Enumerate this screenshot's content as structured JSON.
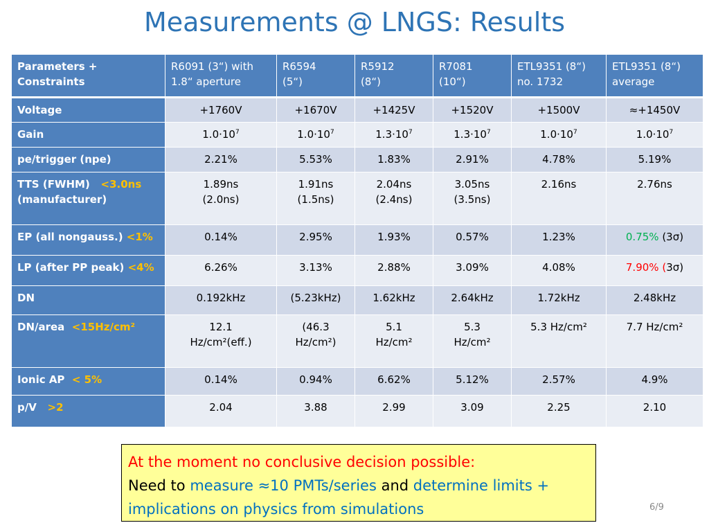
{
  "title": "Measurements @ LNGS: Results",
  "colors": {
    "header_bg": "#4f81bd",
    "row_dark": "#d0d8e8",
    "row_light": "#e9edf4",
    "green": "#00b050",
    "red": "#ff0000",
    "orange": "#ffc000",
    "note_bg": "#ffff99",
    "title": "#2e74b5"
  },
  "table": {
    "header": {
      "param": [
        "Parameters +",
        "Constraints"
      ],
      "cols": [
        [
          "R6091 (3“) with",
          "1.8“ aperture"
        ],
        [
          "R6594",
          "(5“)"
        ],
        [
          "R5912",
          "(8“)"
        ],
        [
          "R7081",
          "(10“)"
        ],
        [
          "ETL9351 (8“)",
          "no. 1732"
        ],
        [
          "ETL9351 (8“)",
          "average"
        ]
      ]
    },
    "rows": {
      "voltage": {
        "label": "Voltage",
        "values": [
          "+1760V",
          "+1670V",
          "+1425V",
          "+1520V",
          "+1500V",
          "≈+1450V"
        ]
      },
      "gain": {
        "label": "Gain",
        "mantissa": [
          "1.0·10",
          "1.0·10",
          "1.3·10",
          "1.3·10",
          "1.0·10",
          "1.0·10"
        ],
        "exponent": [
          "7",
          "7",
          "7",
          "7",
          "7",
          "7"
        ]
      },
      "pe": {
        "label": "pe/trigger (npe)",
        "values": [
          "2.21%",
          "5.53%",
          "1.83%",
          "2.91%",
          "4.78%",
          "5.19%"
        ]
      },
      "tts": {
        "label": "TTS (FWHM)",
        "constraint": "<3.0ns",
        "label2": "(manufacturer)",
        "line1": [
          "1.89ns",
          "1.91ns",
          "2.04ns",
          "3.05ns",
          "2.16ns",
          "2.76ns"
        ],
        "line2": [
          "(2.0ns)",
          "(1.5ns)",
          "(2.4ns)",
          "(3.5ns)",
          "",
          ""
        ]
      },
      "ep": {
        "label": "EP (all nongauss.)",
        "constraint": "<1%",
        "values": [
          "0.14%",
          "2.95%",
          "1.93%",
          "0.57%",
          "1.23%",
          "0.75%"
        ],
        "suffix": "(3σ)"
      },
      "lp": {
        "label": "LP (after PP peak)",
        "constraint": "<4%",
        "values": [
          "6.26%",
          "3.13%",
          "2.88%",
          "3.09%",
          "4.08%",
          "7.90%"
        ],
        "suffix_open": "(",
        "suffix_rest": "3σ)"
      },
      "dn": {
        "label": "DN",
        "values": [
          "0.192kHz",
          "(5.23kHz)",
          "1.62kHz",
          "2.64kHz",
          "1.72kHz",
          "2.48kHz"
        ]
      },
      "dnarea": {
        "label": "DN/area",
        "constraint": "<15Hz/cm²",
        "line1": [
          "12.1",
          "(46.3",
          "5.1",
          "5.3",
          "5.3 Hz/cm²",
          "7.7 Hz/cm²"
        ],
        "line2": [
          "Hz/cm²(eff.)",
          "Hz/cm²)",
          "Hz/cm²",
          "Hz/cm²",
          "",
          ""
        ]
      },
      "ionic": {
        "label": "Ionic AP",
        "constraint": "< 5%",
        "values": [
          "0.14%",
          "0.94%",
          "6.62%",
          "5.12%",
          "2.57%",
          "4.9%"
        ]
      },
      "pv": {
        "label": "p/V",
        "constraint": ">2",
        "values": [
          "2.04",
          "3.88",
          "2.99",
          "3.09",
          "2.25",
          "2.10"
        ]
      }
    }
  },
  "note": {
    "line1": "At the moment no conclusive decision possible:",
    "need_to": "Need to ",
    "measure": "measure ≈10 PMTs/series",
    "and": " and ",
    "determine": "determine limits +",
    "line3": "implications on physics from simulations"
  },
  "page_number": "6/9"
}
